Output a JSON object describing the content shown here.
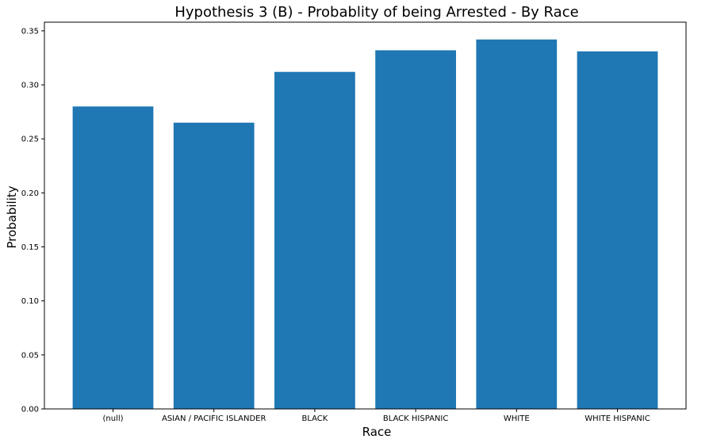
{
  "chart_data": {
    "type": "bar",
    "title": "Hypothesis 3 (B) - Probablity of being Arrested - By Race",
    "xlabel": "Race",
    "ylabel": "Probability",
    "categories": [
      "(null)",
      "ASIAN / PACIFIC ISLANDER",
      "BLACK",
      "BLACK HISPANIC",
      "WHITE",
      "WHITE HISPANIC"
    ],
    "values": [
      0.28,
      0.265,
      0.312,
      0.332,
      0.342,
      0.331
    ],
    "ylim": [
      0,
      0.358
    ],
    "yticks": [
      0.0,
      0.05,
      0.1,
      0.15,
      0.2,
      0.25,
      0.3,
      0.35
    ],
    "ytick_labels": [
      "0.00",
      "0.05",
      "0.10",
      "0.15",
      "0.20",
      "0.25",
      "0.30",
      "0.35"
    ],
    "grid": false,
    "legend": "none",
    "bar_color": "#1f77b4",
    "axis_color": "#000000"
  }
}
